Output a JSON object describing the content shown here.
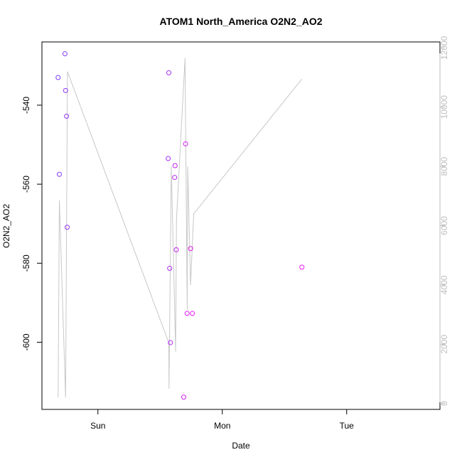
{
  "chart_data": {
    "type": "scatter",
    "title": "ATOM1 North_America O2N2_AO2",
    "xlabel": "Date",
    "ylabel": "O2N2_AO2",
    "x_ticks": [
      {
        "label": "Sun",
        "x": 0.0
      },
      {
        "label": "Mon",
        "x": 1.0
      },
      {
        "label": "Tue",
        "x": 2.0
      }
    ],
    "xlim": [
      -0.45,
      2.75
    ],
    "ylim": [
      -617,
      -524
    ],
    "y_ticks": [
      -540,
      -560,
      -580,
      -600
    ],
    "y2lim": [
      -200,
      12200
    ],
    "y2_ticks": [
      0,
      2000,
      4000,
      6000,
      8000,
      10000,
      12000
    ],
    "grid": false,
    "colors": {
      "points_start": "#7a3cff",
      "points_end": "#ee11ee",
      "line": "#c8c8c8",
      "right_axis": "#bebebe"
    },
    "points": [
      {
        "x": -0.32,
        "y": -533.0
      },
      {
        "x": -0.31,
        "y": -557.5
      },
      {
        "x": -0.265,
        "y": -527.0
      },
      {
        "x": -0.26,
        "y": -536.3
      },
      {
        "x": -0.252,
        "y": -542.8
      },
      {
        "x": -0.247,
        "y": -570.9
      },
      {
        "x": 0.57,
        "y": -531.8
      },
      {
        "x": 0.565,
        "y": -553.5
      },
      {
        "x": 0.577,
        "y": -581.3
      },
      {
        "x": 0.583,
        "y": -600.1
      },
      {
        "x": 0.617,
        "y": -558.3
      },
      {
        "x": 0.62,
        "y": -555.3
      },
      {
        "x": 0.63,
        "y": -576.6
      },
      {
        "x": 0.69,
        "y": -613.9
      },
      {
        "x": 0.705,
        "y": -549.8
      },
      {
        "x": 0.717,
        "y": -592.7
      },
      {
        "x": 0.745,
        "y": -576.3
      },
      {
        "x": 0.76,
        "y": -592.7
      },
      {
        "x": 1.64,
        "y": -581.0
      }
    ],
    "line_series": [
      {
        "x": -0.32,
        "y2": 200
      },
      {
        "x": -0.31,
        "y2": 6850
      },
      {
        "x": -0.26,
        "y2": 200
      },
      {
        "x": -0.245,
        "y2": 11200
      },
      {
        "x": 0.57,
        "y2": 2050
      },
      {
        "x": 0.572,
        "y": 500
      },
      {
        "x": 0.59,
        "y2": 8000
      },
      {
        "x": 0.625,
        "y2": 1750
      },
      {
        "x": 0.632,
        "y2": 6200
      },
      {
        "x": 0.7,
        "y2": 11650
      },
      {
        "x": 0.718,
        "y2": 3150
      },
      {
        "x": 0.722,
        "y2": 8000
      },
      {
        "x": 0.745,
        "y2": 4000
      },
      {
        "x": 0.77,
        "y2": 6400
      },
      {
        "x": 1.64,
        "y2": 10950
      }
    ]
  }
}
